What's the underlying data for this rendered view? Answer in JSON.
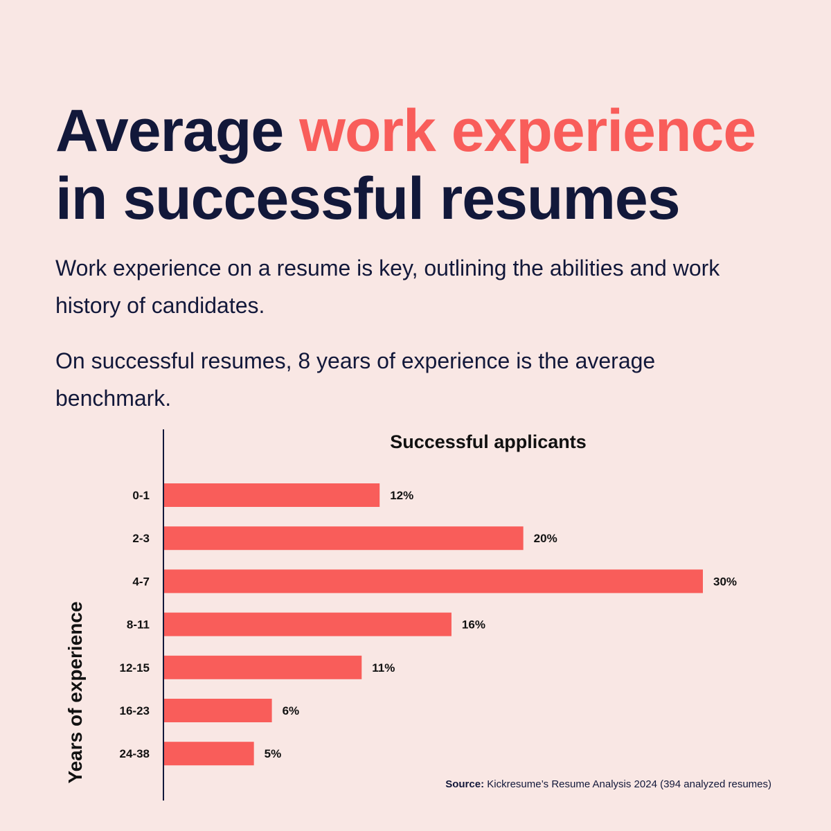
{
  "headline": {
    "part1": "Average ",
    "accent": "work experience",
    "part2": "in successful resumes"
  },
  "intro": {
    "paragraph1": "Work experience on a resume is key, outlining the abilities and work history of candidates.",
    "paragraph2": "On successful resumes, 8 years of experience is the average benchmark."
  },
  "chart_data": {
    "type": "bar",
    "orientation": "horizontal",
    "title": "Successful applicants",
    "ylabel": "Years of experience",
    "xlabel": "",
    "categories": [
      "0-1",
      "2-3",
      "4-7",
      "8-11",
      "12-15",
      "16-23",
      "24-38"
    ],
    "values": [
      12,
      20,
      30,
      16,
      11,
      6,
      5
    ],
    "value_labels": [
      "12%",
      "20%",
      "30%",
      "16%",
      "11%",
      "6%",
      "5%"
    ],
    "unit": "%",
    "xlim": [
      0,
      30
    ],
    "grid": false,
    "legend": "none",
    "bar_color": "#f95d5a"
  },
  "source": {
    "label": "Source:",
    "text": "Kickresume’s Resume Analysis 2024 (394 analyzed resumes)"
  }
}
